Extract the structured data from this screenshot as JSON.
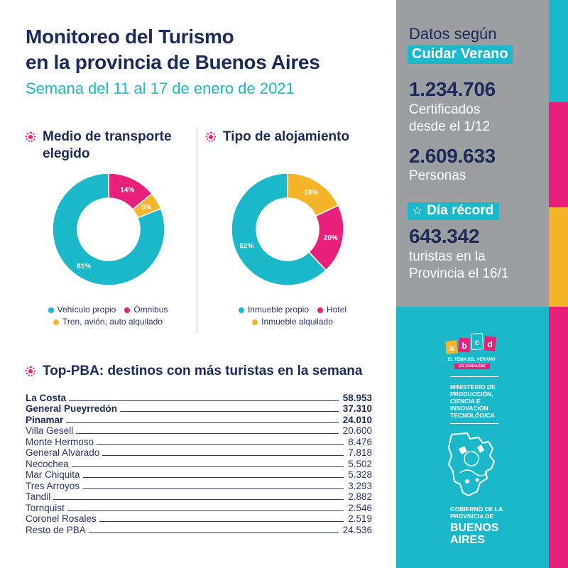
{
  "header": {
    "title_line1": "Monitoreo del Turismo",
    "title_line2": "en la provincia de Buenos Aires",
    "subtitle": "Semana del 11 al 17 de enero de 2021"
  },
  "colors": {
    "navy": "#1c2a5a",
    "teal": "#1ab8c8",
    "pink": "#e8207a",
    "yellow": "#f5b52b",
    "grey": "#9c9ea2"
  },
  "transport": {
    "heading_line1": "Medio de transporte",
    "heading_line2": "elegido",
    "legend": [
      "Vehículo propio",
      "Ómnibus",
      "Tren, avión, auto alquilado"
    ]
  },
  "lodging": {
    "heading": "Tipo de alojamiento",
    "legend": [
      "Inmueble propio",
      "Hotel",
      "Inmueble alquilado"
    ]
  },
  "ranking": {
    "heading": "Top-PBA: destinos con más turistas en la semana"
  },
  "chart_data": [
    {
      "type": "pie",
      "variant": "donut",
      "categories": [
        "Vehículo propio",
        "Ómnibus",
        "Tren, avión, auto alquilado"
      ],
      "values": [
        81,
        14,
        5
      ],
      "labels": [
        "81%",
        "14%",
        "5%"
      ],
      "colors": [
        "#1ab8c8",
        "#e8207a",
        "#f5b52b"
      ]
    },
    {
      "type": "pie",
      "variant": "donut",
      "categories": [
        "Inmueble propio",
        "Hotel",
        "Inmueble alquilado"
      ],
      "values": [
        62,
        20,
        18
      ],
      "labels": [
        "62%",
        "20%",
        "18%"
      ],
      "colors": [
        "#1ab8c8",
        "#e8207a",
        "#f5b52b"
      ]
    },
    {
      "type": "table",
      "rows": [
        {
          "name": "La Costa",
          "value": "58.953",
          "bold": true
        },
        {
          "name": "General Pueyrredón",
          "value": "37.310",
          "bold": true
        },
        {
          "name": "Pinamar",
          "value": "24.010",
          "bold": true
        },
        {
          "name": "Villa Gesell",
          "value": "20.600",
          "bold": false
        },
        {
          "name": "Monte Hermoso",
          "value": "8.476",
          "bold": false
        },
        {
          "name": "General Alvarado",
          "value": "7.818",
          "bold": false
        },
        {
          "name": "Necochea",
          "value": "5.502",
          "bold": false
        },
        {
          "name": "Mar Chiquita",
          "value": "5.328",
          "bold": false
        },
        {
          "name": "Tres Arroyos",
          "value": "3.293",
          "bold": false
        },
        {
          "name": "Tandil",
          "value": "2.882",
          "bold": false
        },
        {
          "name": "Tornquist",
          "value": "2.546",
          "bold": false
        },
        {
          "name": "Coronel Rosales",
          "value": "2.519",
          "bold": false
        },
        {
          "name": "Resto de PBA",
          "value": "24.536",
          "bold": false
        }
      ]
    }
  ],
  "side": {
    "title": "Datos según",
    "badge": "Cuidar Verano",
    "stat1_value": "1.234.706",
    "stat1_caption_line1": "Certificados",
    "stat1_caption_line2": "desde el 1/12",
    "stat2_value": "2.609.633",
    "stat2_caption": "Personas",
    "record_label": "Día récord",
    "record_icon": "star-icon",
    "stat3_value": "643.342",
    "stat3_caption_line1": "turistas en la",
    "stat3_caption_line2": "Provincia el 16/1"
  },
  "logos": {
    "abcd_letters": [
      "a",
      "b",
      "c",
      "d"
    ],
    "abcd_tagline": "EL TEMA DEL VERANO",
    "abcd_tagline2": "ES CUIDARSE",
    "ministry_lines": [
      "MINISTERIO DE",
      "PRODUCCIÓN,",
      "CIENCIA E",
      "INNOVACIÓN",
      "TECNOLÓGICA"
    ],
    "gov_line1": "GOBIERNO DE LA",
    "gov_line2": "PROVINCIA DE",
    "gov_line3": "BUENOS",
    "gov_line4": "AIRES"
  }
}
